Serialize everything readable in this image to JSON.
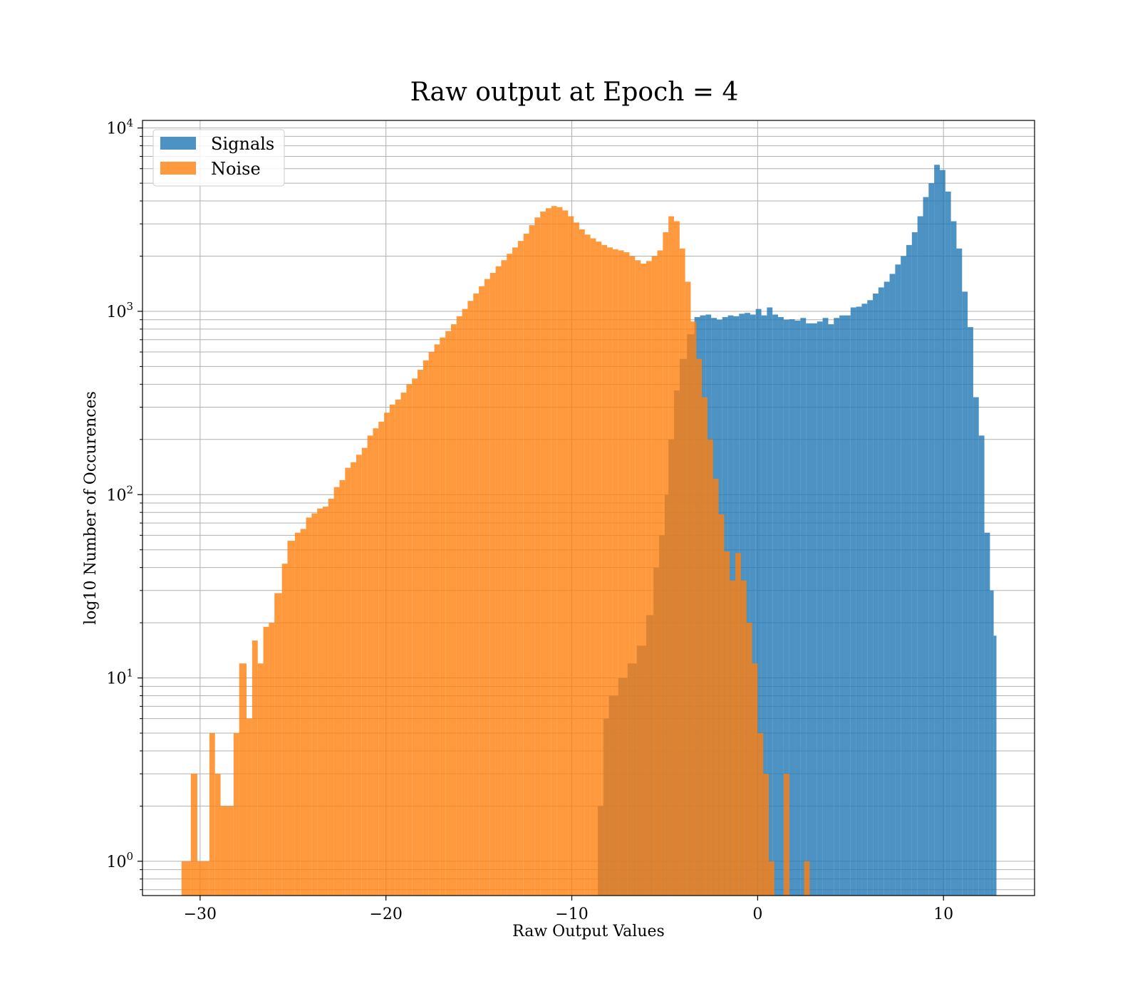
{
  "chart_data": {
    "type": "bar",
    "title": "Raw output at Epoch = 4",
    "xlabel": "Raw Output Values",
    "ylabel": "log10 Number of Occurences",
    "xlim": [
      -33.1,
      14.9
    ],
    "ylim": [
      0.65,
      11000
    ],
    "yscale": "log",
    "grid": "on (major and minor)",
    "legend_location": "upper left",
    "x_ticks": [
      -30,
      -20,
      -10,
      0,
      10
    ],
    "x_tick_labels": [
      "−30",
      "−20",
      "−10",
      "0",
      "10"
    ],
    "y_ticks": [
      1,
      10,
      100,
      1000,
      10000
    ],
    "y_tick_base": "10",
    "y_tick_exponents": [
      "0",
      "1",
      "2",
      "3",
      "4"
    ],
    "series": [
      {
        "name": "Signals",
        "color": "#1f77b4",
        "opacity": 0.8,
        "bins": [
          [
            -8.6,
            -8.3,
            2
          ],
          [
            -8.3,
            -8.0,
            6
          ],
          [
            -8.0,
            -7.5,
            8
          ],
          [
            -7.5,
            -7.0,
            10
          ],
          [
            -7.0,
            -6.5,
            12
          ],
          [
            -6.5,
            -6.0,
            15
          ],
          [
            -6.0,
            -5.6,
            22
          ],
          [
            -5.6,
            -5.3,
            40
          ],
          [
            -5.3,
            -5.0,
            60
          ],
          [
            -5.0,
            -4.8,
            100
          ],
          [
            -4.8,
            -4.5,
            200
          ],
          [
            -4.5,
            -4.2,
            370
          ],
          [
            -4.2,
            -3.8,
            550
          ],
          [
            -3.8,
            -3.4,
            750
          ],
          [
            -3.4,
            -3.1,
            930
          ],
          [
            -3.1,
            -2.8,
            950
          ],
          [
            -2.8,
            -2.5,
            960
          ],
          [
            -2.5,
            -2.2,
            920
          ],
          [
            -2.2,
            -1.9,
            900
          ],
          [
            -1.9,
            -1.6,
            930
          ],
          [
            -1.6,
            -1.3,
            950
          ],
          [
            -1.3,
            -1.0,
            940
          ],
          [
            -1.0,
            -0.7,
            970
          ],
          [
            -0.7,
            -0.4,
            980
          ],
          [
            -0.4,
            -0.1,
            960
          ],
          [
            -0.1,
            0.2,
            1030
          ],
          [
            0.2,
            0.5,
            950
          ],
          [
            0.5,
            0.8,
            1050
          ],
          [
            0.8,
            1.1,
            960
          ],
          [
            1.1,
            1.4,
            930
          ],
          [
            1.4,
            1.7,
            900
          ],
          [
            1.7,
            2.0,
            905
          ],
          [
            2.0,
            2.3,
            890
          ],
          [
            2.3,
            2.6,
            920
          ],
          [
            2.6,
            2.9,
            860
          ],
          [
            2.9,
            3.2,
            860
          ],
          [
            3.2,
            3.5,
            880
          ],
          [
            3.5,
            3.8,
            920
          ],
          [
            3.8,
            4.1,
            850
          ],
          [
            4.1,
            4.4,
            920
          ],
          [
            4.4,
            4.7,
            950
          ],
          [
            4.7,
            5.0,
            950
          ],
          [
            5.0,
            5.3,
            1050
          ],
          [
            5.3,
            5.6,
            1060
          ],
          [
            5.6,
            5.9,
            1100
          ],
          [
            5.9,
            6.2,
            1150
          ],
          [
            6.2,
            6.5,
            1250
          ],
          [
            6.5,
            6.8,
            1350
          ],
          [
            6.8,
            7.1,
            1450
          ],
          [
            7.1,
            7.4,
            1600
          ],
          [
            7.4,
            7.7,
            1800
          ],
          [
            7.7,
            8.0,
            2000
          ],
          [
            8.0,
            8.3,
            2300
          ],
          [
            8.3,
            8.6,
            2700
          ],
          [
            8.6,
            8.9,
            3300
          ],
          [
            8.9,
            9.2,
            4200
          ],
          [
            9.2,
            9.5,
            5000
          ],
          [
            9.5,
            9.8,
            6300
          ],
          [
            9.8,
            10.1,
            5900
          ],
          [
            10.1,
            10.4,
            4500
          ],
          [
            10.4,
            10.7,
            3100
          ],
          [
            10.7,
            11.0,
            2200
          ],
          [
            11.0,
            11.3,
            1280
          ],
          [
            11.3,
            11.6,
            820
          ],
          [
            11.6,
            11.9,
            340
          ],
          [
            11.9,
            12.2,
            210
          ],
          [
            12.2,
            12.5,
            62
          ],
          [
            12.5,
            12.7,
            30
          ],
          [
            12.7,
            12.85,
            17
          ]
        ]
      },
      {
        "name": "Noise",
        "color": "#ff7f0e",
        "opacity": 0.8,
        "bins": [
          [
            -31.0,
            -30.5,
            1
          ],
          [
            -30.5,
            -30.15,
            3
          ],
          [
            -30.15,
            -29.5,
            1
          ],
          [
            -29.5,
            -29.2,
            5
          ],
          [
            -29.2,
            -28.9,
            3
          ],
          [
            -28.9,
            -28.2,
            2
          ],
          [
            -28.2,
            -27.9,
            5
          ],
          [
            -27.9,
            -27.5,
            12
          ],
          [
            -27.5,
            -27.2,
            6
          ],
          [
            -27.2,
            -26.9,
            16
          ],
          [
            -26.9,
            -26.6,
            12
          ],
          [
            -26.6,
            -26.3,
            19
          ],
          [
            -26.3,
            -26.0,
            20
          ],
          [
            -26.0,
            -25.6,
            29
          ],
          [
            -25.6,
            -25.3,
            42
          ],
          [
            -25.3,
            -24.9,
            56
          ],
          [
            -24.9,
            -24.6,
            62
          ],
          [
            -24.6,
            -24.3,
            65
          ],
          [
            -24.3,
            -24.0,
            75
          ],
          [
            -24.0,
            -23.7,
            79
          ],
          [
            -23.7,
            -23.4,
            84
          ],
          [
            -23.4,
            -23.1,
            86
          ],
          [
            -23.1,
            -22.8,
            95
          ],
          [
            -22.8,
            -22.5,
            110
          ],
          [
            -22.5,
            -22.2,
            120
          ],
          [
            -22.2,
            -21.9,
            140
          ],
          [
            -21.9,
            -21.6,
            150
          ],
          [
            -21.6,
            -21.3,
            165
          ],
          [
            -21.3,
            -21.0,
            180
          ],
          [
            -21.0,
            -20.7,
            210
          ],
          [
            -20.7,
            -20.4,
            230
          ],
          [
            -20.4,
            -20.1,
            250
          ],
          [
            -20.1,
            -19.8,
            280
          ],
          [
            -19.8,
            -19.5,
            310
          ],
          [
            -19.5,
            -19.2,
            330
          ],
          [
            -19.2,
            -18.9,
            360
          ],
          [
            -18.9,
            -18.6,
            400
          ],
          [
            -18.6,
            -18.3,
            430
          ],
          [
            -18.3,
            -18.0,
            480
          ],
          [
            -18.0,
            -17.7,
            540
          ],
          [
            -17.7,
            -17.4,
            600
          ],
          [
            -17.4,
            -17.1,
            660
          ],
          [
            -17.1,
            -16.8,
            720
          ],
          [
            -16.8,
            -16.5,
            780
          ],
          [
            -16.5,
            -16.2,
            850
          ],
          [
            -16.2,
            -15.9,
            940
          ],
          [
            -15.9,
            -15.6,
            1030
          ],
          [
            -15.6,
            -15.3,
            1140
          ],
          [
            -15.3,
            -15.0,
            1250
          ],
          [
            -15.0,
            -14.7,
            1370
          ],
          [
            -14.7,
            -14.4,
            1500
          ],
          [
            -14.4,
            -14.1,
            1620
          ],
          [
            -14.1,
            -13.8,
            1760
          ],
          [
            -13.8,
            -13.5,
            1900
          ],
          [
            -13.5,
            -13.2,
            2060
          ],
          [
            -13.2,
            -12.9,
            2230
          ],
          [
            -12.9,
            -12.6,
            2420
          ],
          [
            -12.6,
            -12.3,
            2650
          ],
          [
            -12.3,
            -12.0,
            2950
          ],
          [
            -12.0,
            -11.7,
            3250
          ],
          [
            -11.7,
            -11.4,
            3500
          ],
          [
            -11.4,
            -11.1,
            3650
          ],
          [
            -11.1,
            -10.8,
            3750
          ],
          [
            -10.8,
            -10.5,
            3700
          ],
          [
            -10.5,
            -10.2,
            3550
          ],
          [
            -10.2,
            -9.9,
            3300
          ],
          [
            -9.9,
            -9.6,
            3050
          ],
          [
            -9.6,
            -9.3,
            2800
          ],
          [
            -9.3,
            -9.0,
            2620
          ],
          [
            -9.0,
            -8.7,
            2500
          ],
          [
            -8.7,
            -8.4,
            2400
          ],
          [
            -8.4,
            -8.1,
            2300
          ],
          [
            -8.1,
            -7.8,
            2230
          ],
          [
            -7.8,
            -7.5,
            2180
          ],
          [
            -7.5,
            -7.2,
            2150
          ],
          [
            -7.2,
            -6.9,
            2100
          ],
          [
            -6.9,
            -6.6,
            2000
          ],
          [
            -6.6,
            -6.3,
            1900
          ],
          [
            -6.3,
            -6.0,
            1820
          ],
          [
            -6.0,
            -5.7,
            1880
          ],
          [
            -5.7,
            -5.4,
            2000
          ],
          [
            -5.4,
            -5.1,
            2150
          ],
          [
            -5.1,
            -4.8,
            2700
          ],
          [
            -4.8,
            -4.5,
            3300
          ],
          [
            -4.5,
            -4.2,
            3100
          ],
          [
            -4.2,
            -3.9,
            2200
          ],
          [
            -3.9,
            -3.6,
            1450
          ],
          [
            -3.6,
            -3.3,
            880
          ],
          [
            -3.3,
            -3.0,
            550
          ],
          [
            -3.0,
            -2.7,
            340
          ],
          [
            -2.7,
            -2.4,
            200
          ],
          [
            -2.4,
            -2.1,
            122
          ],
          [
            -2.1,
            -1.8,
            78
          ],
          [
            -1.8,
            -1.5,
            49
          ],
          [
            -1.5,
            -1.2,
            34
          ],
          [
            -1.2,
            -0.9,
            48
          ],
          [
            -0.9,
            -0.6,
            34
          ],
          [
            -0.6,
            -0.3,
            20
          ],
          [
            -0.3,
            0.0,
            12
          ],
          [
            0.0,
            0.3,
            5
          ],
          [
            0.3,
            0.6,
            3
          ],
          [
            0.6,
            0.9,
            1
          ],
          [
            1.4,
            1.7,
            3
          ],
          [
            2.5,
            2.8,
            1
          ]
        ]
      }
    ]
  }
}
